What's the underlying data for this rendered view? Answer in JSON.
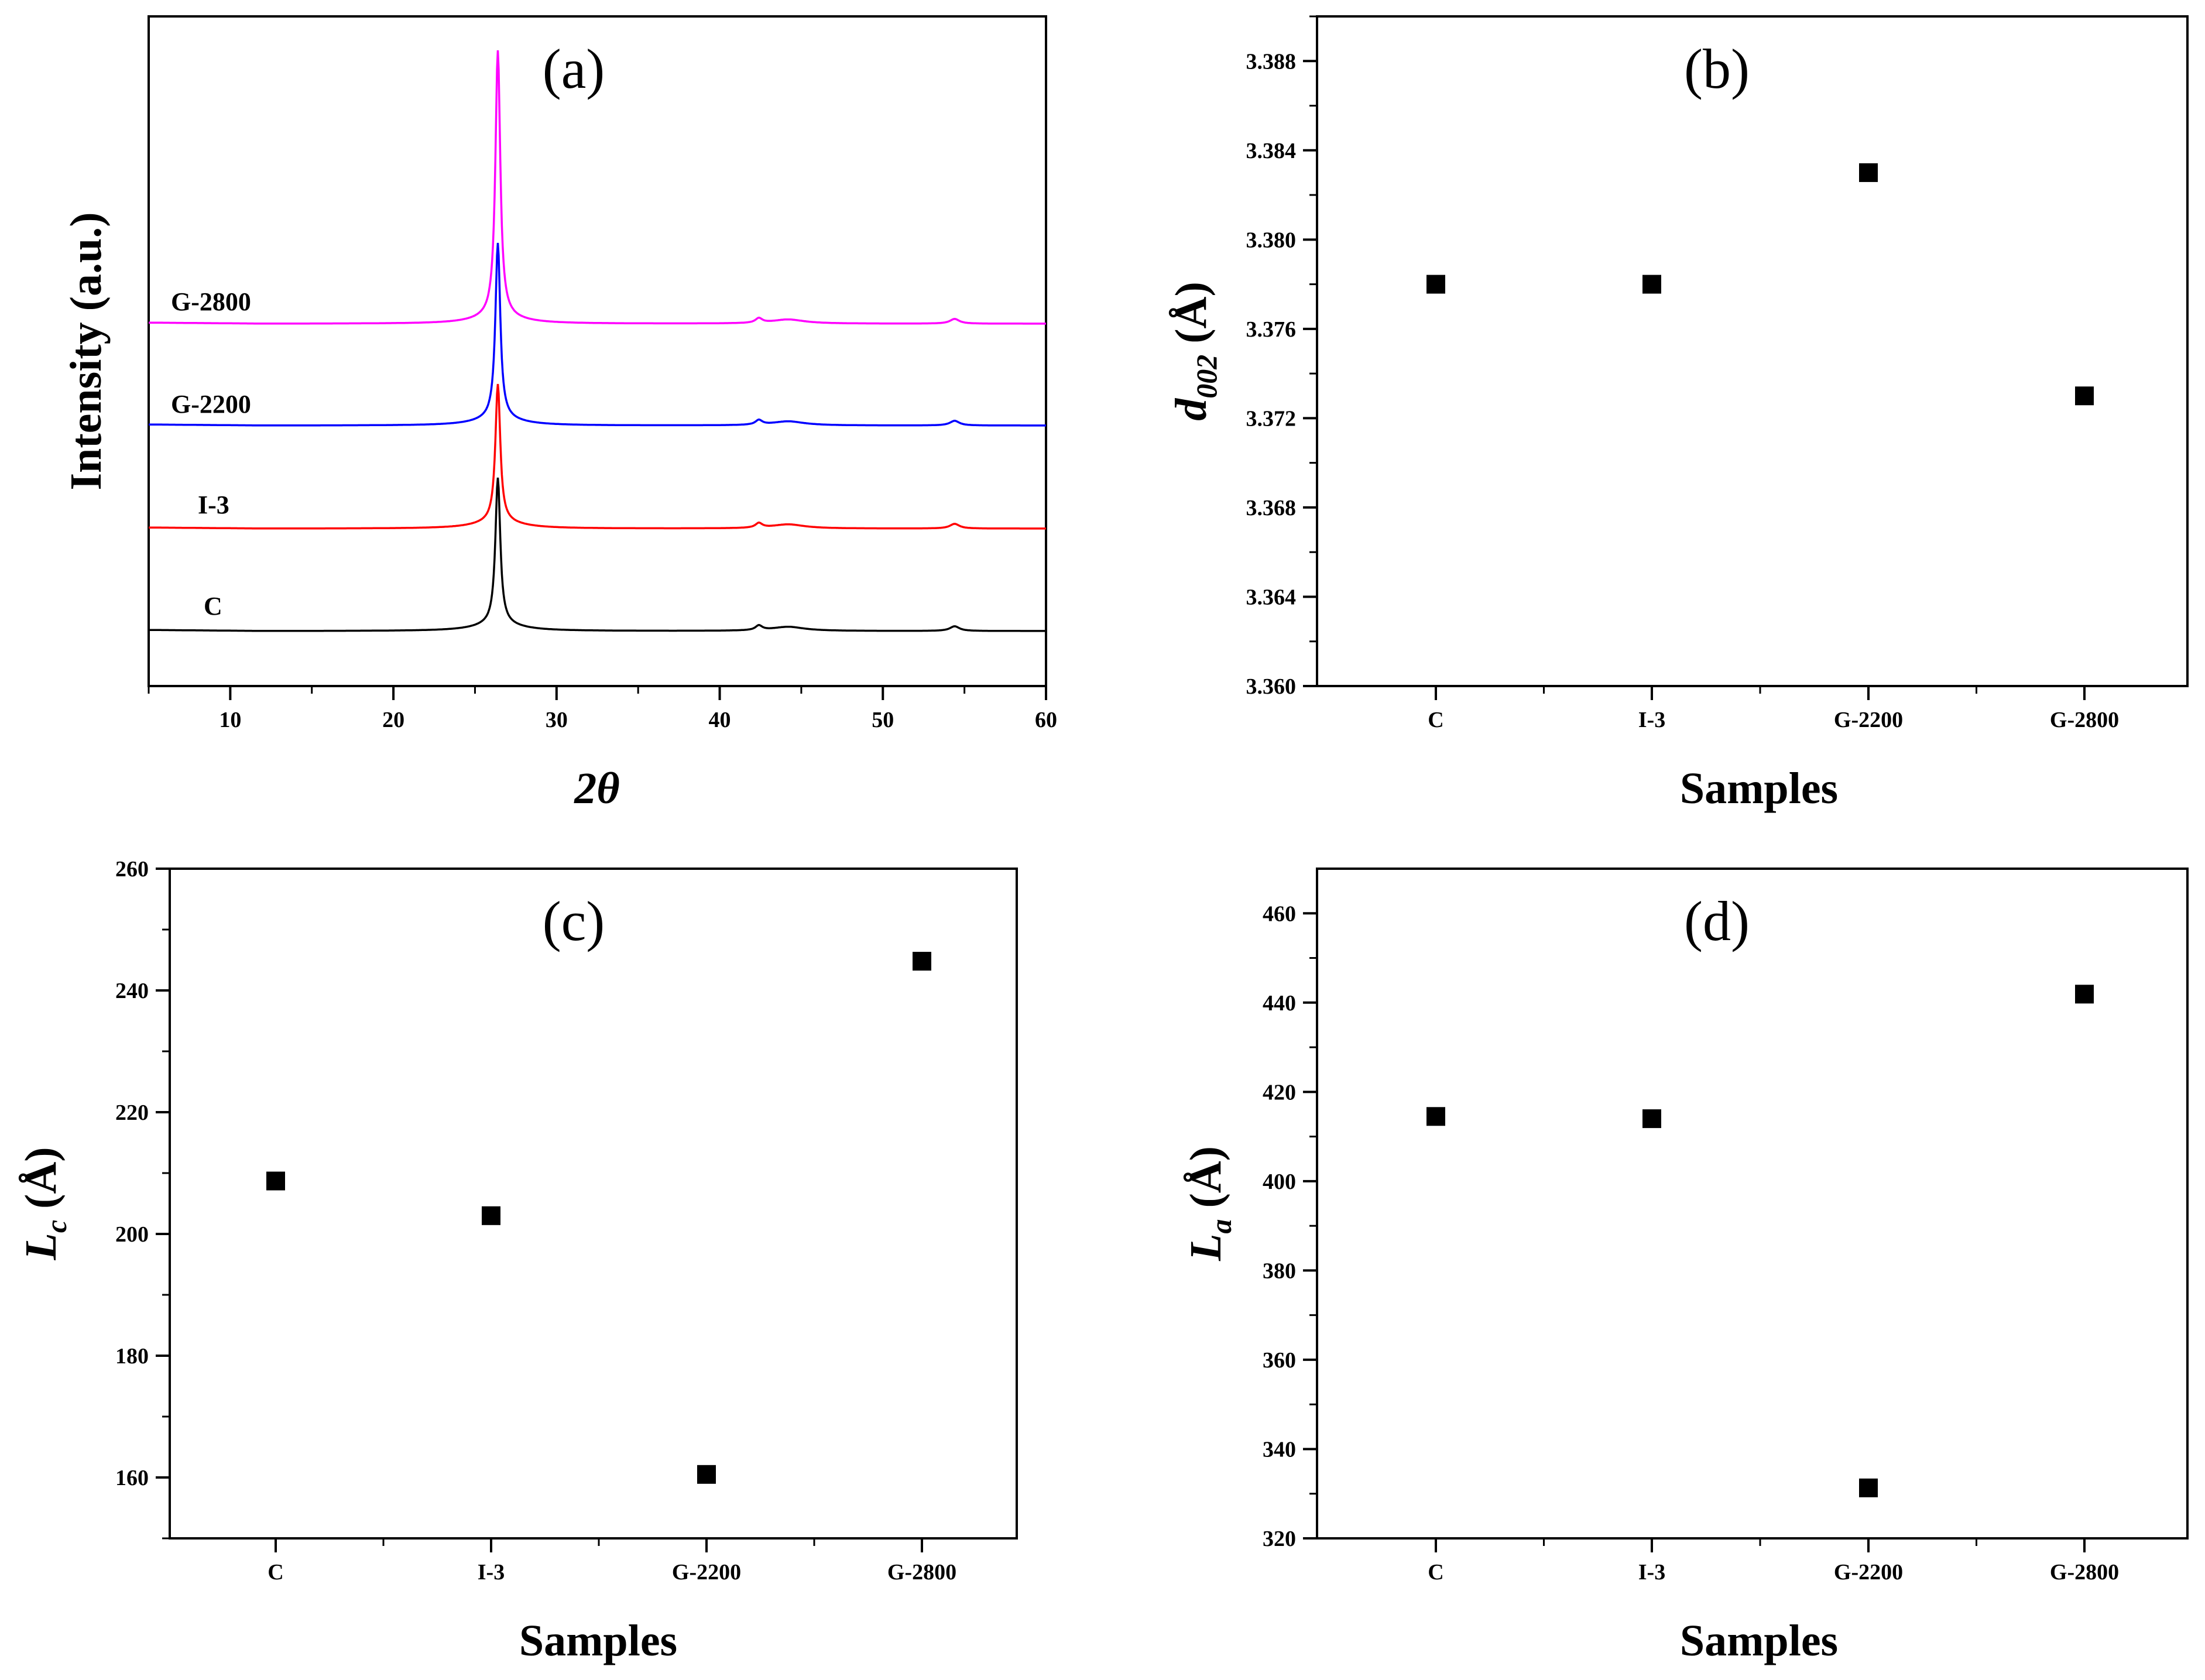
{
  "chart_data": [
    {
      "id": "a",
      "type": "line",
      "panel_label": "(a)",
      "xlabel": "2θ",
      "ylabel": "Intensity (a.u.)",
      "xlim": [
        5,
        60
      ],
      "xticks": [
        10,
        20,
        30,
        40,
        50,
        60
      ],
      "yticks_visible": false,
      "stacked_offset": true,
      "peak_2theta": 26.4,
      "secondary_peaks_2theta": [
        42.4,
        44.2,
        54.4
      ],
      "series": [
        {
          "name": "C",
          "label": "C",
          "color": "#000000",
          "offset": 0,
          "peak_height": 250
        },
        {
          "name": "I-3",
          "label": "I-3",
          "color": "#ff0000",
          "offset": 1,
          "peak_height": 235
        },
        {
          "name": "G-2200",
          "label": "G-2200",
          "color": "#0000ff",
          "offset": 2,
          "peak_height": 300
        },
        {
          "name": "G-2800",
          "label": "G-2800",
          "color": "#ff00ff",
          "offset": 3,
          "peak_height": 455
        }
      ]
    },
    {
      "id": "b",
      "type": "scatter",
      "panel_label": "(b)",
      "xlabel": "Samples",
      "ylabel_main": "d",
      "ylabel_sub": "002",
      "ylabel_unit": " (Å)",
      "categories": [
        "C",
        "I-3",
        "G-2200",
        "G-2800"
      ],
      "values": [
        3.378,
        3.378,
        3.383,
        3.373
      ],
      "ylim": [
        3.36,
        3.39
      ],
      "yticks": [
        3.36,
        3.364,
        3.368,
        3.372,
        3.376,
        3.38,
        3.384,
        3.388
      ],
      "ytick_labels": [
        "3.360",
        "3.364",
        "3.368",
        "3.372",
        "3.376",
        "3.380",
        "3.384",
        "3.388"
      ]
    },
    {
      "id": "c",
      "type": "scatter",
      "panel_label": "(c)",
      "xlabel": "Samples",
      "ylabel_main": "L",
      "ylabel_sub": "c",
      "ylabel_unit": " (Å)",
      "categories": [
        "C",
        "I-3",
        "G-2200",
        "G-2800"
      ],
      "values": [
        208.7,
        203.0,
        160.5,
        244.8
      ],
      "ylim": [
        150,
        260
      ],
      "yticks": [
        160,
        180,
        200,
        220,
        240,
        260
      ],
      "ytick_labels": [
        "160",
        "180",
        "200",
        "220",
        "240",
        "260"
      ]
    },
    {
      "id": "d",
      "type": "scatter",
      "panel_label": "(d)",
      "xlabel": "Samples",
      "ylabel_main": "L",
      "ylabel_sub": "a",
      "ylabel_unit": " (Å)",
      "categories": [
        "C",
        "I-3",
        "G-2200",
        "G-2800"
      ],
      "values": [
        414.5,
        414.0,
        331.3,
        441.9
      ],
      "ylim": [
        320,
        470
      ],
      "yticks": [
        320,
        340,
        360,
        380,
        400,
        420,
        440,
        460
      ],
      "ytick_labels": [
        "320",
        "340",
        "360",
        "380",
        "400",
        "420",
        "440",
        "460"
      ]
    }
  ]
}
